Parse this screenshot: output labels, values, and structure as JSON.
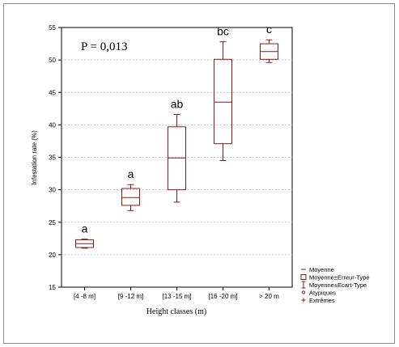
{
  "chart_data": {
    "type": "box",
    "title": "",
    "xlabel": "Height classes (m)",
    "ylabel": "Infestation rate (%)",
    "ylim": [
      15,
      55
    ],
    "yticks": [
      15,
      20,
      25,
      30,
      35,
      40,
      45,
      50,
      55
    ],
    "grid": "horizontal dashed",
    "categories": [
      "[4 -8 m]",
      "[9 -12 m]",
      "[13 -15 m]",
      "[16 -20 m]",
      "> 20 m"
    ],
    "boxes": [
      {
        "category": "[4 -8 m]",
        "mean": 21.7,
        "box_low": 21.1,
        "box_high": 22.3,
        "whisker_low": 21.0,
        "whisker_high": 22.4,
        "letter": "a"
      },
      {
        "category": "[9 -12 m]",
        "mean": 28.8,
        "box_low": 27.6,
        "box_high": 30.2,
        "whisker_low": 26.8,
        "whisker_high": 30.8,
        "letter": "a"
      },
      {
        "category": "[13 -15 m]",
        "mean": 34.9,
        "box_low": 30.0,
        "box_high": 39.7,
        "whisker_low": 28.1,
        "whisker_high": 41.6,
        "letter": "ab"
      },
      {
        "category": "[16 -20 m]",
        "mean": 43.5,
        "box_low": 37.1,
        "box_high": 50.1,
        "whisker_low": 34.5,
        "whisker_high": 52.8,
        "letter": "bc"
      },
      {
        "category": "> 20 m",
        "mean": 51.3,
        "box_low": 50.1,
        "box_high": 52.5,
        "whisker_low": 49.6,
        "whisker_high": 53.1,
        "letter": "c"
      }
    ],
    "annotation": "P = 0,013",
    "legend": {
      "placement": "bottom-right",
      "entries": [
        {
          "symbol": "mean-dash",
          "label": "Moyenne"
        },
        {
          "symbol": "box",
          "label": "Moyenne±Erreur-Type"
        },
        {
          "symbol": "whisker",
          "label": "Moyenne±Ecart-Type"
        },
        {
          "symbol": "circle",
          "label": "Atypiques"
        },
        {
          "symbol": "plus",
          "label": "Extrêmes"
        }
      ]
    },
    "colors": {
      "series": "#8b1a1a",
      "grid": "#b5b5b5",
      "axis": "#000000"
    }
  }
}
